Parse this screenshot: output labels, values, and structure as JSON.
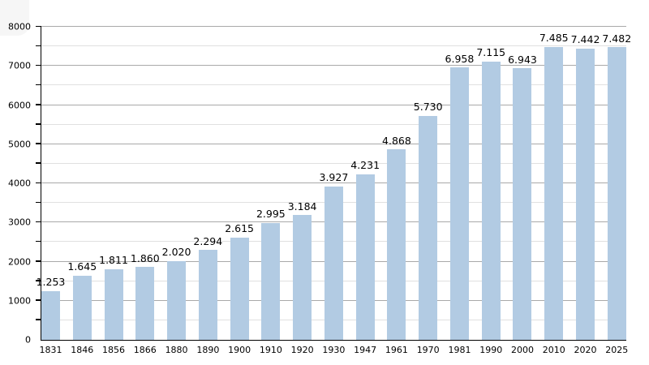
{
  "page": {
    "background": "#ffffff"
  },
  "chart_data": {
    "type": "bar",
    "title": "",
    "xlabel": "",
    "ylabel": "",
    "categories": [
      "1831",
      "1846",
      "1856",
      "1866",
      "1880",
      "1890",
      "1900",
      "1910",
      "1920",
      "1930",
      "1947",
      "1961",
      "1970",
      "1981",
      "1990",
      "2000",
      "2010",
      "2020",
      "2025"
    ],
    "values": [
      1253,
      1645,
      1811,
      1860,
      2020,
      2294,
      2615,
      2995,
      3184,
      3927,
      4231,
      4868,
      5730,
      6958,
      7115,
      6943,
      7485,
      7442,
      7482
    ],
    "value_labels": [
      "1.253",
      "1.645",
      "1.811",
      "1.860",
      "2.020",
      "2.294",
      "2.615",
      "2.995",
      "3.184",
      "3.927",
      "4.231",
      "4.868",
      "5.730",
      "6.958",
      "7.115",
      "6.943",
      "7.485",
      "7.442",
      "7.482"
    ],
    "ylim": [
      0,
      8000
    ],
    "y_major_step": 1000,
    "y_minor_step": 500,
    "y_tick_labels": [
      "0",
      "1000",
      "2000",
      "3000",
      "4000",
      "5000",
      "6000",
      "7000",
      "8000"
    ],
    "grid": true,
    "legend": "none",
    "colors": {
      "bar_fill": "#b2cbe3",
      "major_gridline": "#a9a9a9",
      "minor_gridline": "#e0e0e0",
      "axis": "#000000",
      "text": "#000000"
    }
  }
}
